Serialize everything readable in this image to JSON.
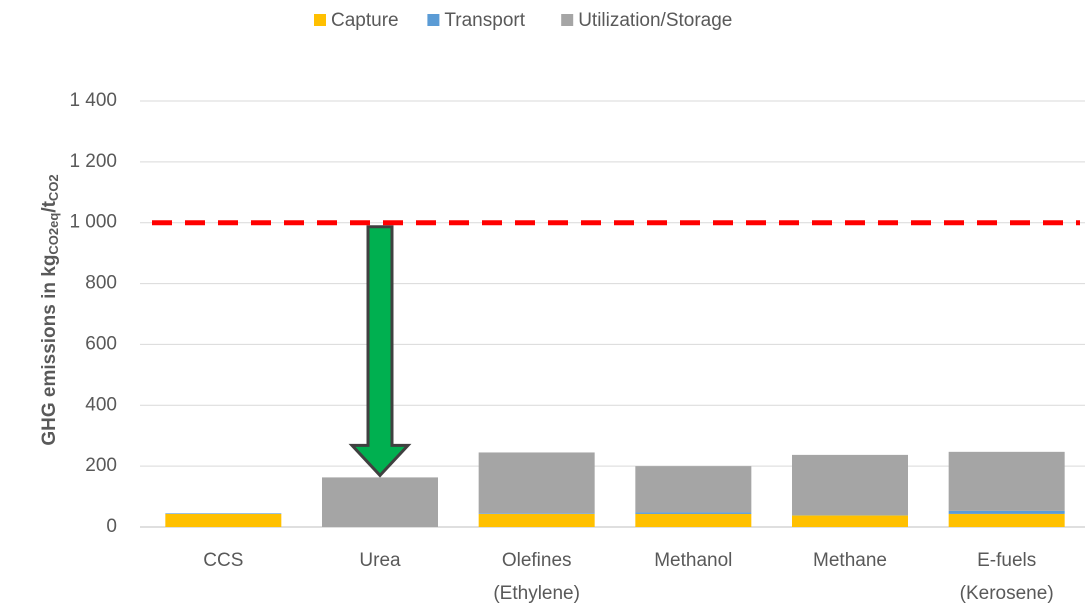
{
  "chart_data": {
    "type": "stacked_bar",
    "ylabel": {
      "main": "GHG emissions in kg",
      "sub1": "CO2eq",
      "mid": "/t",
      "sub2": "CO2"
    },
    "categories": [
      [
        "CCS"
      ],
      [
        "Urea"
      ],
      [
        "Olefines",
        "(Ethylene)"
      ],
      [
        "Methanol"
      ],
      [
        "Methane"
      ],
      [
        "E-fuels",
        "(Kerosene)"
      ]
    ],
    "series": [
      {
        "name": "Capture",
        "color": "#ffc000",
        "values": [
          43,
          0,
          43,
          43,
          38,
          43
        ]
      },
      {
        "name": "Transport",
        "color": "#5b9bd5",
        "values": [
          2,
          0,
          2,
          5,
          1,
          10
        ]
      },
      {
        "name": "Utilization/Storage",
        "color": "#a5a5a5",
        "values": [
          0,
          163,
          200,
          152,
          198,
          194
        ]
      }
    ],
    "ylim": [
      0,
      1400
    ],
    "yticks": [
      0,
      200,
      400,
      600,
      800,
      {
        "value": 1000,
        "label": "1 000"
      },
      {
        "value": 1200,
        "label": "1 200"
      },
      {
        "value": 1400,
        "label": "1 400"
      }
    ],
    "grid": true,
    "reference_line": {
      "value": 1000,
      "color": "#ff0000"
    },
    "legend": "top"
  }
}
